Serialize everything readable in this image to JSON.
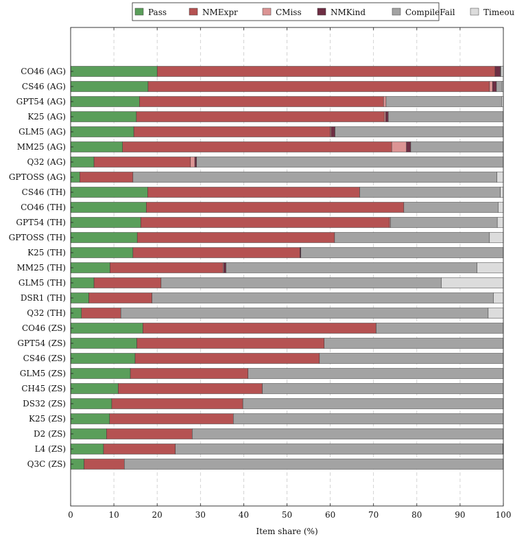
{
  "chart_data": {
    "type": "bar",
    "orientation": "horizontal",
    "stacked": true,
    "xlabel": "Item share (%)",
    "ylabel": "",
    "xlim": [
      0,
      100
    ],
    "xticks": [
      0,
      10,
      20,
      30,
      40,
      50,
      60,
      70,
      80,
      90,
      100
    ],
    "grid": "vertical dashed",
    "legend_position": "top-center",
    "categories": [
      "CO46 (AG)",
      "CS46 (AG)",
      "GPT54 (AG)",
      "K25 (AG)",
      "GLM5 (AG)",
      "MM25 (AG)",
      "Q32 (AG)",
      "GPTOSS (AG)",
      "CS46 (TH)",
      "CO46 (TH)",
      "GPT54 (TH)",
      "GPTOSS (TH)",
      "K25 (TH)",
      "MM25 (TH)",
      "GLM5 (TH)",
      "DSR1 (TH)",
      "Q32 (TH)",
      "CO46 (ZS)",
      "GPT54 (ZS)",
      "CS46 (ZS)",
      "GLM5 (ZS)",
      "CH45 (ZS)",
      "DS32 (ZS)",
      "K25 (ZS)",
      "D2 (ZS)",
      "L4 (ZS)",
      "Q3C (ZS)"
    ],
    "series": [
      {
        "name": "Pass",
        "color": "#5a9e5a",
        "values": [
          20.0,
          17.9,
          15.9,
          15.2,
          14.6,
          12.0,
          5.4,
          2.1,
          17.8,
          17.5,
          16.2,
          15.4,
          14.4,
          9.1,
          5.4,
          4.2,
          2.5,
          16.7,
          15.3,
          14.9,
          13.8,
          11.0,
          9.5,
          9.0,
          8.3,
          7.6,
          3.1
        ]
      },
      {
        "name": "NMExpr",
        "color": "#b55252",
        "values": [
          78.1,
          78.9,
          56.4,
          57.3,
          45.4,
          62.2,
          22.3,
          12.3,
          49.0,
          59.5,
          57.5,
          45.6,
          38.6,
          26.1,
          15.5,
          14.6,
          9.1,
          53.9,
          43.3,
          42.6,
          27.2,
          33.3,
          30.3,
          28.6,
          19.8,
          16.6,
          9.3
        ]
      },
      {
        "name": "CMiss",
        "color": "#dc9494",
        "values": [
          0.0,
          0.7,
          0.6,
          0.3,
          0.2,
          3.4,
          1.0,
          0.0,
          0.0,
          0.0,
          0.2,
          0.0,
          0.0,
          0.2,
          0.0,
          0.0,
          0.0,
          0.0,
          0.0,
          0.0,
          0.0,
          0.0,
          0.0,
          0.0,
          0.0,
          0.0,
          0.0
        ]
      },
      {
        "name": "NMKind",
        "color": "#6e2e44",
        "values": [
          1.2,
          0.9,
          0.0,
          0.6,
          0.9,
          1.0,
          0.4,
          0.0,
          0.0,
          0.0,
          0.0,
          0.0,
          0.2,
          0.5,
          0.0,
          0.0,
          0.0,
          0.0,
          0.0,
          0.0,
          0.0,
          0.0,
          0.0,
          0.0,
          0.0,
          0.0,
          0.0
        ]
      },
      {
        "name": "CompileFail",
        "color": "#a3a3a3",
        "values": [
          0.2,
          1.3,
          26.7,
          26.6,
          38.9,
          21.4,
          70.9,
          84.1,
          32.5,
          21.8,
          24.7,
          35.8,
          46.8,
          58.0,
          64.8,
          78.9,
          84.9,
          29.4,
          41.4,
          42.5,
          59.0,
          55.7,
          60.2,
          62.4,
          71.9,
          75.7,
          87.6
        ]
      },
      {
        "name": "Timeout",
        "color": "#dcdcdc",
        "values": [
          0.5,
          0.3,
          0.4,
          0.0,
          0.0,
          0.0,
          0.0,
          1.5,
          0.7,
          1.2,
          1.4,
          3.2,
          0.0,
          6.1,
          14.3,
          2.3,
          3.5,
          0.0,
          0.0,
          0.0,
          0.0,
          0.0,
          0.0,
          0.0,
          0.0,
          0.3,
          0.0
        ]
      }
    ]
  }
}
